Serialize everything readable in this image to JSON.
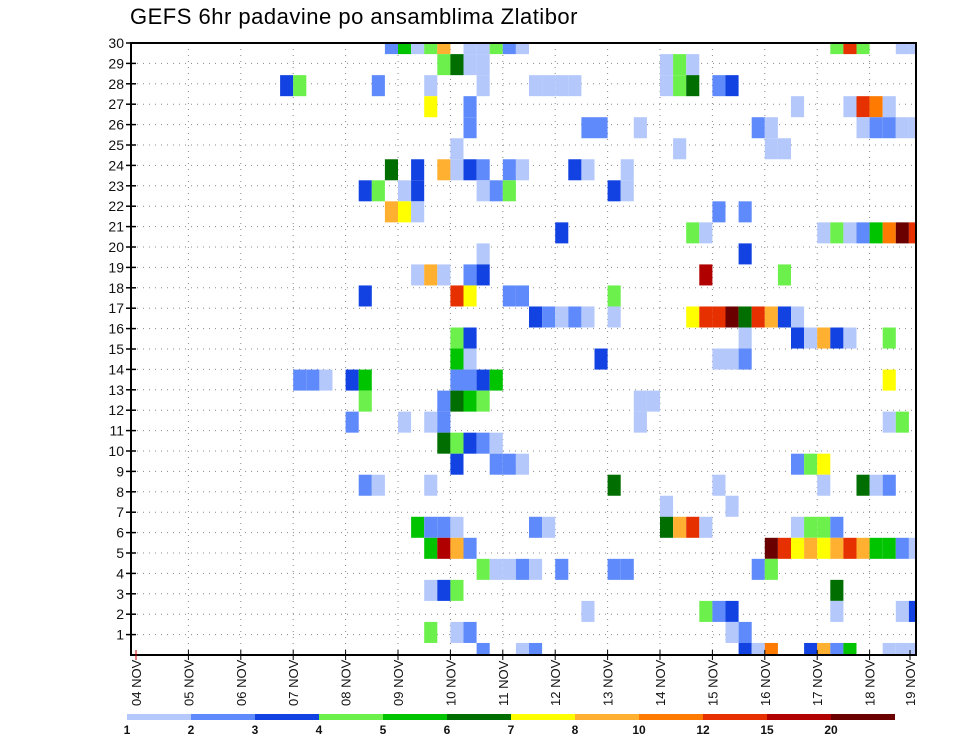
{
  "chart_data": {
    "type": "heatmap",
    "title": "GEFS 6hr padavine po ansamblima Zlatibor",
    "xlabel": "",
    "ylabel": "",
    "x_tick_labels": [
      "04 NOV",
      "05 NOV",
      "06 NOV",
      "07 NOV",
      "08 NOV",
      "09 NOV",
      "10 NOV",
      "11 NOV",
      "12 NOV",
      "13 NOV",
      "14 NOV",
      "15 NOV",
      "16 NOV",
      "17 NOV",
      "18 NOV",
      "19 NOV"
    ],
    "y_tick_labels": [
      "1",
      "2",
      "3",
      "4",
      "5",
      "6",
      "7",
      "8",
      "9",
      "10",
      "11",
      "12",
      "13",
      "14",
      "15",
      "16",
      "17",
      "18",
      "19",
      "20",
      "21",
      "22",
      "23",
      "24",
      "25",
      "26",
      "27",
      "28",
      "29",
      "30"
    ],
    "x_unit": "6-hour period index counted from 04 NOV 00Z (period ending)",
    "y_unit": "ensemble member",
    "grid": true,
    "legend": {
      "placement": "bottom",
      "levels": [
        "1",
        "2",
        "3",
        "4",
        "5",
        "6",
        "7",
        "8",
        "10",
        "12",
        "15",
        "20"
      ],
      "colors": [
        "#b4c8fb",
        "#5f8afb",
        "#1242e2",
        "#6cf04c",
        "#00c400",
        "#006e00",
        "#ffff00",
        "#ffb030",
        "#ff7a00",
        "#e63000",
        "#b00000",
        "#6a0000"
      ]
    },
    "cells_member_period_mm": [
      [
        30,
        20,
        2
      ],
      [
        30,
        21,
        5
      ],
      [
        30,
        22,
        1
      ],
      [
        30,
        23,
        4
      ],
      [
        30,
        24,
        8
      ],
      [
        30,
        26,
        1
      ],
      [
        30,
        27,
        1
      ],
      [
        30,
        28,
        4
      ],
      [
        30,
        29,
        2
      ],
      [
        30,
        30,
        1
      ],
      [
        30,
        54,
        4
      ],
      [
        30,
        55,
        12
      ],
      [
        30,
        56,
        4
      ],
      [
        30,
        59,
        1
      ],
      [
        30,
        60,
        1
      ],
      [
        29,
        24,
        4
      ],
      [
        29,
        25,
        6
      ],
      [
        29,
        26,
        1
      ],
      [
        29,
        27,
        1
      ],
      [
        29,
        41,
        1
      ],
      [
        29,
        42,
        4
      ],
      [
        29,
        43,
        1
      ],
      [
        28,
        12,
        3
      ],
      [
        28,
        13,
        4
      ],
      [
        28,
        19,
        2
      ],
      [
        28,
        23,
        1
      ],
      [
        28,
        27,
        1
      ],
      [
        28,
        31,
        1
      ],
      [
        28,
        32,
        1
      ],
      [
        28,
        33,
        1
      ],
      [
        28,
        34,
        1
      ],
      [
        28,
        41,
        1
      ],
      [
        28,
        42,
        4
      ],
      [
        28,
        43,
        6
      ],
      [
        28,
        45,
        2
      ],
      [
        28,
        46,
        3
      ],
      [
        27,
        23,
        7
      ],
      [
        27,
        26,
        2
      ],
      [
        27,
        51,
        1
      ],
      [
        27,
        55,
        1
      ],
      [
        27,
        56,
        12
      ],
      [
        27,
        57,
        10
      ],
      [
        27,
        58,
        1
      ],
      [
        26,
        26,
        2
      ],
      [
        26,
        35,
        2
      ],
      [
        26,
        36,
        2
      ],
      [
        26,
        39,
        1
      ],
      [
        26,
        48,
        2
      ],
      [
        26,
        49,
        1
      ],
      [
        26,
        56,
        1
      ],
      [
        26,
        57,
        2
      ],
      [
        26,
        58,
        2
      ],
      [
        26,
        59,
        1
      ],
      [
        26,
        60,
        1
      ],
      [
        25,
        25,
        1
      ],
      [
        25,
        42,
        1
      ],
      [
        25,
        49,
        1
      ],
      [
        25,
        50,
        1
      ],
      [
        24,
        20,
        6
      ],
      [
        24,
        22,
        3
      ],
      [
        24,
        24,
        8
      ],
      [
        24,
        25,
        1
      ],
      [
        24,
        26,
        3
      ],
      [
        24,
        27,
        2
      ],
      [
        24,
        29,
        2
      ],
      [
        24,
        30,
        1
      ],
      [
        24,
        34,
        3
      ],
      [
        24,
        35,
        1
      ],
      [
        24,
        38,
        1
      ],
      [
        23,
        18,
        3
      ],
      [
        23,
        19,
        4
      ],
      [
        23,
        21,
        1
      ],
      [
        23,
        22,
        3
      ],
      [
        23,
        27,
        1
      ],
      [
        23,
        28,
        2
      ],
      [
        23,
        29,
        4
      ],
      [
        23,
        37,
        3
      ],
      [
        23,
        38,
        1
      ],
      [
        22,
        20,
        8
      ],
      [
        22,
        21,
        7
      ],
      [
        22,
        22,
        1
      ],
      [
        22,
        45,
        2
      ],
      [
        22,
        47,
        2
      ],
      [
        21,
        33,
        3
      ],
      [
        21,
        43,
        4
      ],
      [
        21,
        44,
        1
      ],
      [
        21,
        53,
        1
      ],
      [
        21,
        54,
        4
      ],
      [
        21,
        55,
        1
      ],
      [
        21,
        56,
        2
      ],
      [
        21,
        57,
        5
      ],
      [
        21,
        58,
        10
      ],
      [
        21,
        59,
        20
      ],
      [
        21,
        60,
        12
      ],
      [
        20,
        27,
        1
      ],
      [
        20,
        47,
        3
      ],
      [
        19,
        22,
        1
      ],
      [
        19,
        23,
        8
      ],
      [
        19,
        24,
        1
      ],
      [
        19,
        26,
        2
      ],
      [
        19,
        27,
        3
      ],
      [
        19,
        44,
        15
      ],
      [
        19,
        50,
        4
      ],
      [
        18,
        18,
        3
      ],
      [
        18,
        25,
        12
      ],
      [
        18,
        26,
        7
      ],
      [
        18,
        29,
        2
      ],
      [
        18,
        30,
        2
      ],
      [
        18,
        37,
        4
      ],
      [
        17,
        31,
        3
      ],
      [
        17,
        32,
        2
      ],
      [
        17,
        33,
        1
      ],
      [
        17,
        34,
        2
      ],
      [
        17,
        35,
        1
      ],
      [
        17,
        37,
        1
      ],
      [
        17,
        43,
        7
      ],
      [
        17,
        44,
        12
      ],
      [
        17,
        45,
        12
      ],
      [
        17,
        46,
        20
      ],
      [
        17,
        47,
        6
      ],
      [
        17,
        48,
        12
      ],
      [
        17,
        49,
        8
      ],
      [
        17,
        50,
        3
      ],
      [
        17,
        51,
        1
      ],
      [
        16,
        25,
        4
      ],
      [
        16,
        26,
        3
      ],
      [
        16,
        47,
        1
      ],
      [
        16,
        51,
        3
      ],
      [
        16,
        52,
        1
      ],
      [
        16,
        53,
        8
      ],
      [
        16,
        54,
        3
      ],
      [
        16,
        55,
        1
      ],
      [
        16,
        58,
        4
      ],
      [
        15,
        25,
        5
      ],
      [
        15,
        26,
        1
      ],
      [
        15,
        36,
        3
      ],
      [
        15,
        45,
        1
      ],
      [
        15,
        46,
        1
      ],
      [
        15,
        47,
        2
      ],
      [
        14,
        13,
        2
      ],
      [
        14,
        14,
        2
      ],
      [
        14,
        15,
        1
      ],
      [
        14,
        17,
        3
      ],
      [
        14,
        18,
        5
      ],
      [
        14,
        25,
        2
      ],
      [
        14,
        26,
        2
      ],
      [
        14,
        27,
        3
      ],
      [
        14,
        28,
        5
      ],
      [
        14,
        58,
        7
      ],
      [
        13,
        18,
        4
      ],
      [
        13,
        24,
        2
      ],
      [
        13,
        25,
        6
      ],
      [
        13,
        26,
        5
      ],
      [
        13,
        27,
        4
      ],
      [
        13,
        39,
        1
      ],
      [
        13,
        40,
        1
      ],
      [
        12,
        17,
        2
      ],
      [
        12,
        21,
        1
      ],
      [
        12,
        23,
        1
      ],
      [
        12,
        24,
        2
      ],
      [
        12,
        39,
        1
      ],
      [
        12,
        58,
        1
      ],
      [
        12,
        59,
        4
      ],
      [
        11,
        24,
        6
      ],
      [
        11,
        25,
        4
      ],
      [
        11,
        26,
        3
      ],
      [
        11,
        27,
        2
      ],
      [
        11,
        28,
        1
      ],
      [
        10,
        25,
        3
      ],
      [
        10,
        28,
        2
      ],
      [
        10,
        29,
        2
      ],
      [
        10,
        30,
        1
      ],
      [
        10,
        51,
        2
      ],
      [
        10,
        52,
        4
      ],
      [
        10,
        53,
        7
      ],
      [
        9,
        18,
        2
      ],
      [
        9,
        19,
        1
      ],
      [
        9,
        23,
        1
      ],
      [
        9,
        37,
        6
      ],
      [
        9,
        45,
        1
      ],
      [
        9,
        53,
        1
      ],
      [
        9,
        56,
        6
      ],
      [
        9,
        57,
        1
      ],
      [
        9,
        58,
        2
      ],
      [
        8,
        41,
        1
      ],
      [
        8,
        46,
        1
      ],
      [
        7,
        22,
        5
      ],
      [
        7,
        23,
        2
      ],
      [
        7,
        24,
        2
      ],
      [
        7,
        25,
        1
      ],
      [
        7,
        31,
        2
      ],
      [
        7,
        32,
        1
      ],
      [
        7,
        41,
        6
      ],
      [
        7,
        42,
        8
      ],
      [
        7,
        43,
        12
      ],
      [
        7,
        44,
        1
      ],
      [
        7,
        51,
        1
      ],
      [
        7,
        52,
        4
      ],
      [
        7,
        53,
        4
      ],
      [
        7,
        54,
        2
      ],
      [
        6,
        23,
        5
      ],
      [
        6,
        24,
        15
      ],
      [
        6,
        25,
        8
      ],
      [
        6,
        26,
        2
      ],
      [
        6,
        49,
        20
      ],
      [
        6,
        50,
        12
      ],
      [
        6,
        51,
        7
      ],
      [
        6,
        52,
        8
      ],
      [
        6,
        53,
        7
      ],
      [
        6,
        54,
        8
      ],
      [
        6,
        55,
        12
      ],
      [
        6,
        56,
        8
      ],
      [
        6,
        57,
        5
      ],
      [
        6,
        58,
        5
      ],
      [
        6,
        59,
        2
      ],
      [
        6,
        60,
        1
      ],
      [
        5,
        27,
        4
      ],
      [
        5,
        28,
        1
      ],
      [
        5,
        29,
        1
      ],
      [
        5,
        30,
        2
      ],
      [
        5,
        31,
        1
      ],
      [
        5,
        33,
        2
      ],
      [
        5,
        37,
        2
      ],
      [
        5,
        38,
        2
      ],
      [
        5,
        48,
        2
      ],
      [
        5,
        49,
        4
      ],
      [
        4,
        23,
        1
      ],
      [
        4,
        24,
        3
      ],
      [
        4,
        25,
        4
      ],
      [
        4,
        54,
        6
      ],
      [
        3,
        35,
        1
      ],
      [
        3,
        44,
        4
      ],
      [
        3,
        45,
        2
      ],
      [
        3,
        46,
        3
      ],
      [
        3,
        54,
        1
      ],
      [
        3,
        59,
        1
      ],
      [
        3,
        60,
        3
      ],
      [
        2,
        23,
        4
      ],
      [
        2,
        25,
        1
      ],
      [
        2,
        26,
        2
      ],
      [
        2,
        46,
        1
      ],
      [
        2,
        47,
        2
      ],
      [
        1,
        27,
        2
      ],
      [
        1,
        30,
        1
      ],
      [
        1,
        31,
        2
      ],
      [
        1,
        47,
        3
      ],
      [
        1,
        48,
        1
      ],
      [
        1,
        49,
        10
      ],
      [
        1,
        52,
        3
      ],
      [
        1,
        53,
        8
      ],
      [
        1,
        54,
        2
      ],
      [
        1,
        55,
        5
      ],
      [
        1,
        58,
        1
      ],
      [
        1,
        59,
        1
      ],
      [
        1,
        60,
        1
      ]
    ]
  }
}
